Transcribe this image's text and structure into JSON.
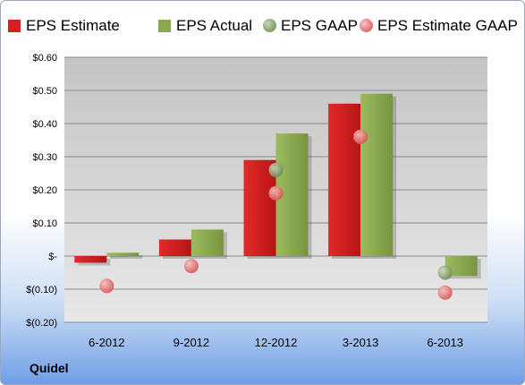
{
  "company": "Quidel",
  "chart_data": {
    "type": "bar",
    "categories": [
      "6-2012",
      "9-2012",
      "12-2012",
      "3-2013",
      "6-2013"
    ],
    "series": [
      {
        "name": "EPS Estimate",
        "kind": "bar",
        "color": "#d42020",
        "values": [
          -0.02,
          0.05,
          0.29,
          0.46,
          null
        ]
      },
      {
        "name": "EPS Actual",
        "kind": "bar",
        "color": "#8aa84e",
        "values": [
          0.01,
          0.08,
          0.37,
          0.49,
          -0.06
        ]
      },
      {
        "name": "EPS GAAP",
        "kind": "point",
        "color": "#7f9a63",
        "values": [
          null,
          null,
          0.26,
          null,
          -0.05
        ]
      },
      {
        "name": "EPS Estimate GAAP",
        "kind": "point",
        "color": "#e36a6a",
        "values": [
          -0.09,
          -0.03,
          0.19,
          0.36,
          -0.11
        ]
      }
    ],
    "ylim": [
      -0.2,
      0.6
    ],
    "yticks": [
      {
        "value": 0.6,
        "label": "$0.60"
      },
      {
        "value": 0.5,
        "label": "$0.50"
      },
      {
        "value": 0.4,
        "label": "$0.40"
      },
      {
        "value": 0.3,
        "label": "$0.30"
      },
      {
        "value": 0.2,
        "label": "$0.20"
      },
      {
        "value": 0.1,
        "label": "$0.10"
      },
      {
        "value": 0.0,
        "label": "$-"
      },
      {
        "value": -0.1,
        "label": "$(0.10)"
      },
      {
        "value": -0.2,
        "label": "$(0.20)"
      }
    ],
    "grid": true,
    "legend_position": "top"
  }
}
